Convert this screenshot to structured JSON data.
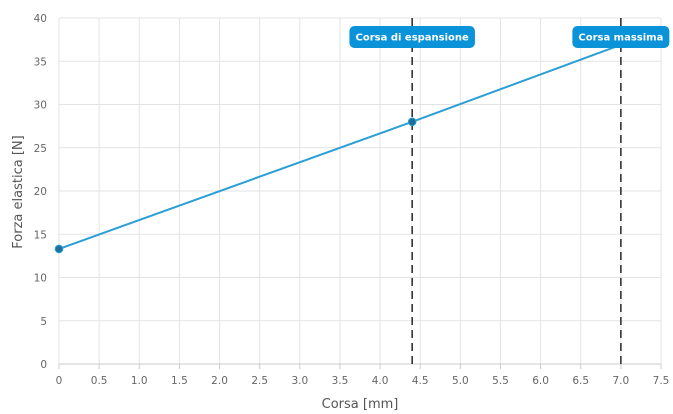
{
  "chart_data": {
    "type": "line",
    "xlabel": "Corsa [mm]",
    "ylabel": "Forza elastica [N]",
    "xlim": [
      0,
      7.5
    ],
    "ylim": [
      0,
      40
    ],
    "x_ticks": [
      "0",
      "0.5",
      "1.0",
      "1.5",
      "2.0",
      "2.5",
      "3.0",
      "3.5",
      "4.0",
      "4.5",
      "5.0",
      "5.5",
      "6.0",
      "6.5",
      "7.0",
      "7.5"
    ],
    "y_ticks": [
      "0",
      "5",
      "10",
      "15",
      "20",
      "25",
      "30",
      "35",
      "40"
    ],
    "grid": true,
    "legend": "none",
    "series": [
      {
        "x": [
          0,
          4.4,
          7.0
        ],
        "y": [
          13.3,
          28.0,
          36.9
        ],
        "color": "#2a9fd6"
      }
    ],
    "markers": [
      {
        "x": 0,
        "y": 13.3
      },
      {
        "x": 4.4,
        "y": 28.0
      }
    ],
    "annotations": [
      {
        "x": 4.4,
        "label": "Corsa di espansione"
      },
      {
        "x": 7.0,
        "label": "Corsa massima"
      }
    ],
    "colors": {
      "line": "#2a9fd6",
      "marker": "#1f6f9a",
      "annotation_bg": "#0a93d9",
      "reference_line": "#333333",
      "grid": "#e3e3e3"
    }
  }
}
